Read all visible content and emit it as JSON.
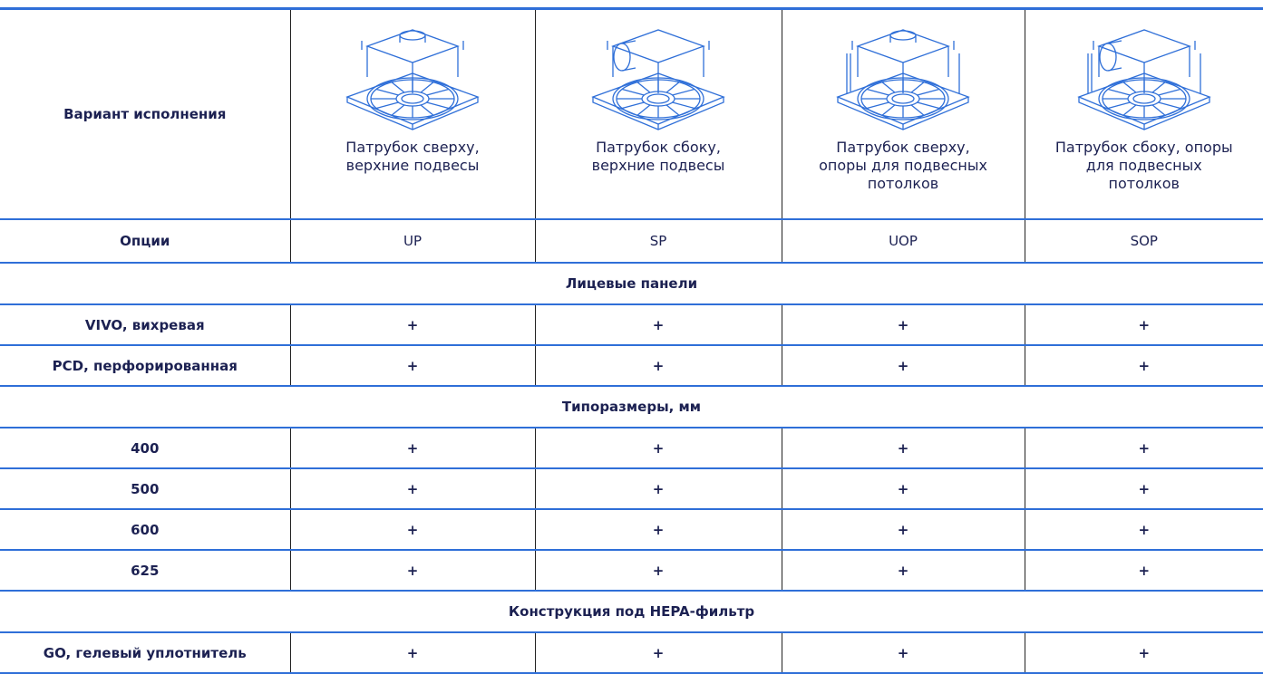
{
  "header": {
    "row_label": "Вариант исполнения",
    "variants": [
      "Патрубок сверху, верхние подвесы",
      "Патрубок сбоку, верхние подвесы",
      "Патрубок сверху, опоры для подвесных потолков",
      "Патрубок сбоку, опоры для подвесных потолков"
    ]
  },
  "options": {
    "label": "Опции",
    "values": [
      "UP",
      "SP",
      "UOP",
      "SOP"
    ]
  },
  "sections": [
    {
      "title": "Лицевые панели",
      "rows": [
        {
          "label": "VIVO, вихревая",
          "cells": [
            "+",
            "+",
            "+",
            "+"
          ]
        },
        {
          "label": "PCD, перфорированная",
          "cells": [
            "+",
            "+",
            "+",
            "+"
          ]
        }
      ]
    },
    {
      "title": "Типоразмеры, мм",
      "rows": [
        {
          "label": "400",
          "cells": [
            "+",
            "+",
            "+",
            "+"
          ]
        },
        {
          "label": "500",
          "cells": [
            "+",
            "+",
            "+",
            "+"
          ]
        },
        {
          "label": "600",
          "cells": [
            "+",
            "+",
            "+",
            "+"
          ]
        },
        {
          "label": "625",
          "cells": [
            "+",
            "+",
            "+",
            "+"
          ]
        }
      ]
    },
    {
      "title": "Конструкция под HEPA-фильтр",
      "rows": [
        {
          "label": "GO, гелевый уплотнитель",
          "cells": [
            "+",
            "+",
            "+",
            "+"
          ]
        }
      ]
    }
  ]
}
